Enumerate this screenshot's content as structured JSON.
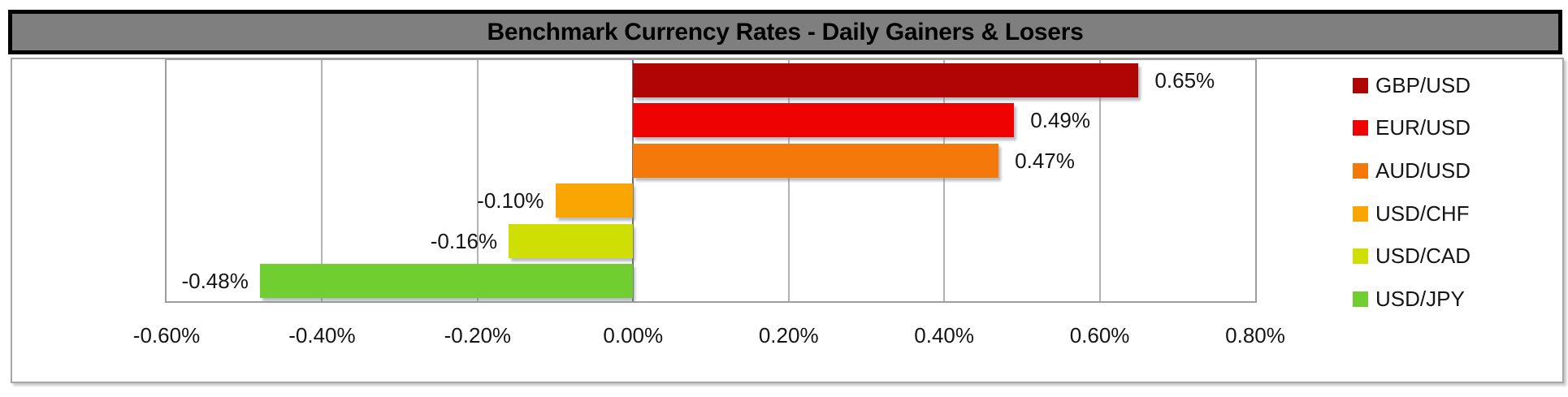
{
  "chart_data": {
    "type": "bar",
    "orientation": "horizontal",
    "title": "Benchmark Currency Rates - Daily Gainers & Losers",
    "categories": [
      "GBP/USD",
      "EUR/USD",
      "AUD/USD",
      "USD/CHF",
      "USD/CAD",
      "USD/JPY"
    ],
    "values": [
      0.65,
      0.49,
      0.47,
      -0.1,
      -0.16,
      -0.48
    ],
    "data_labels": [
      "0.65%",
      "0.49%",
      "0.47%",
      "-0.10%",
      "-0.16%",
      "-0.48%"
    ],
    "bar_colors": [
      "#b00505",
      "#ee0202",
      "#f5780a",
      "#f9a602",
      "#cfdf03",
      "#70ce30"
    ],
    "xlim": [
      -0.6,
      0.8
    ],
    "x_ticks": [
      {
        "value": -0.6,
        "label": "-0.60%"
      },
      {
        "value": -0.4,
        "label": "-0.40%"
      },
      {
        "value": -0.2,
        "label": "-0.20%"
      },
      {
        "value": 0.0,
        "label": "0.00%"
      },
      {
        "value": 0.2,
        "label": "0.20%"
      },
      {
        "value": 0.4,
        "label": "0.40%"
      },
      {
        "value": 0.6,
        "label": "0.60%"
      },
      {
        "value": 0.8,
        "label": "0.80%"
      }
    ],
    "grid": true,
    "legend_position": "right",
    "xlabel": "",
    "ylabel": ""
  },
  "colors": {
    "title_bg": "#7f7f7f",
    "title_border": "#000000",
    "chart_border": "#a6a6a6",
    "plot_border": "#9e9e9e",
    "gridline": "#b3b3b3",
    "zero_line": "#6f6f6f"
  }
}
